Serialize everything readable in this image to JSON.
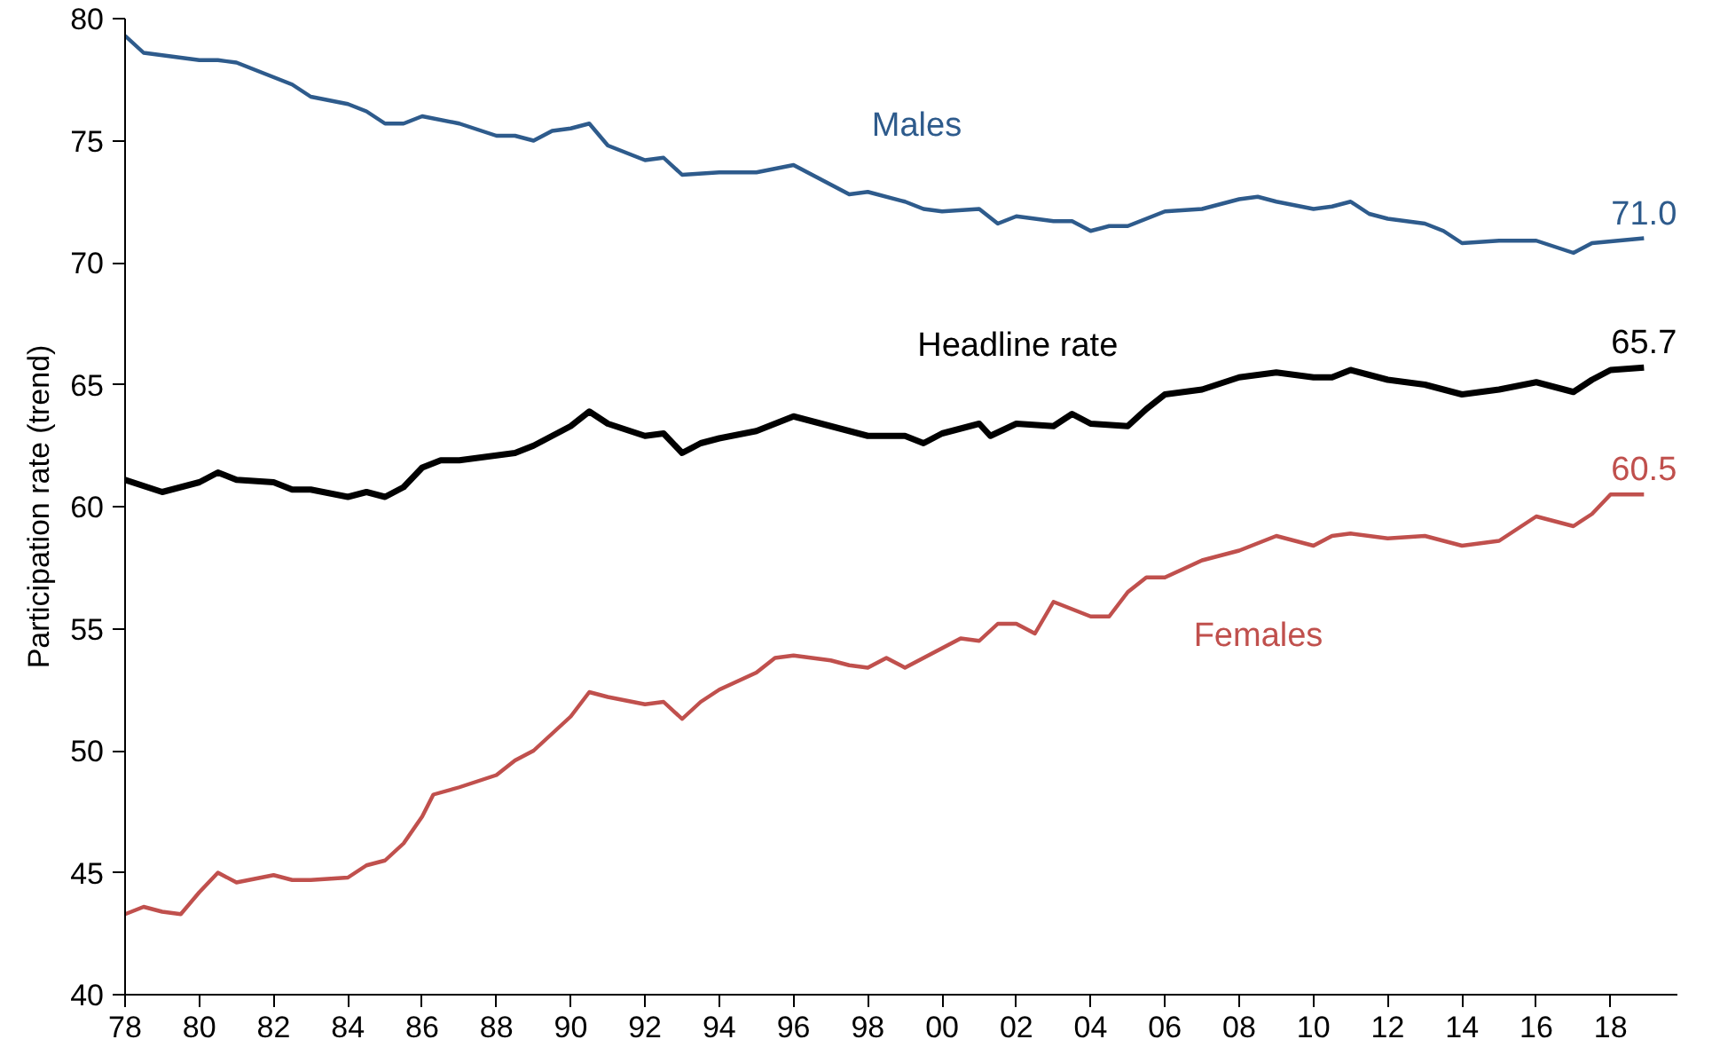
{
  "chart_data": {
    "type": "line",
    "ylabel": "Participation rate (trend)",
    "xlim": [
      1978,
      2019.8
    ],
    "ylim": [
      40,
      80
    ],
    "yticks": [
      40,
      45,
      50,
      55,
      60,
      65,
      70,
      75,
      80
    ],
    "xticks": [
      {
        "value": 1978,
        "label": "78"
      },
      {
        "value": 1980,
        "label": "80"
      },
      {
        "value": 1982,
        "label": "82"
      },
      {
        "value": 1984,
        "label": "84"
      },
      {
        "value": 1986,
        "label": "86"
      },
      {
        "value": 1988,
        "label": "88"
      },
      {
        "value": 1990,
        "label": "90"
      },
      {
        "value": 1992,
        "label": "92"
      },
      {
        "value": 1994,
        "label": "94"
      },
      {
        "value": 1996,
        "label": "96"
      },
      {
        "value": 1998,
        "label": "98"
      },
      {
        "value": 2000,
        "label": "00"
      },
      {
        "value": 2002,
        "label": "02"
      },
      {
        "value": 2004,
        "label": "04"
      },
      {
        "value": 2006,
        "label": "06"
      },
      {
        "value": 2008,
        "label": "08"
      },
      {
        "value": 2010,
        "label": "10"
      },
      {
        "value": 2012,
        "label": "12"
      },
      {
        "value": 2014,
        "label": "14"
      },
      {
        "value": 2016,
        "label": "16"
      },
      {
        "value": 2018,
        "label": "18"
      }
    ],
    "grid": false,
    "line_style": "solid",
    "marker": "none",
    "series": [
      {
        "name": "Males",
        "color": "#2e5b8c",
        "x": [
          1978,
          1978.5,
          1979,
          1980,
          1980.5,
          1981,
          1982,
          1982.5,
          1983,
          1984,
          1984.5,
          1985,
          1985.5,
          1986,
          1987,
          1988,
          1988.5,
          1989,
          1989.5,
          1990,
          1990.5,
          1991,
          1992,
          1992.5,
          1993,
          1994,
          1995,
          1996,
          1996.5,
          1997,
          1997.5,
          1998,
          1999,
          1999.5,
          2000,
          2001,
          2001.5,
          2002,
          2003,
          2003.5,
          2004,
          2004.5,
          2005,
          2006,
          2007,
          2008,
          2008.5,
          2009,
          2010,
          2010.5,
          2011,
          2011.5,
          2012,
          2013,
          2013.5,
          2014,
          2015,
          2016,
          2017,
          2017.5,
          2018.9
        ],
        "values": [
          79.3,
          78.6,
          78.5,
          78.3,
          78.3,
          78.2,
          77.6,
          77.3,
          76.8,
          76.5,
          76.2,
          75.7,
          75.7,
          76.0,
          75.7,
          75.2,
          75.2,
          75.0,
          75.4,
          75.5,
          75.7,
          74.8,
          74.2,
          74.3,
          73.6,
          73.7,
          73.7,
          74.0,
          73.6,
          73.2,
          72.8,
          72.9,
          72.5,
          72.2,
          72.1,
          72.2,
          71.6,
          71.9,
          71.7,
          71.7,
          71.3,
          71.5,
          71.5,
          72.1,
          72.2,
          72.6,
          72.7,
          72.5,
          72.2,
          72.3,
          72.5,
          72.0,
          71.8,
          71.6,
          71.3,
          70.8,
          70.9,
          70.9,
          70.4,
          70.8,
          71.0
        ],
        "value_labels": [
          null,
          null,
          null,
          null,
          null,
          null,
          null,
          null,
          null,
          null,
          null,
          null,
          null,
          null,
          null,
          null,
          null,
          null,
          null,
          null,
          null,
          null,
          null,
          null,
          null,
          null,
          null,
          null,
          null,
          null,
          null,
          null,
          null,
          null,
          null,
          null,
          null,
          null,
          null,
          null,
          null,
          null,
          null,
          null,
          null,
          null,
          null,
          null,
          null,
          null,
          null,
          null,
          null,
          null,
          null,
          null,
          null,
          null,
          null,
          null,
          "71.0"
        ]
      },
      {
        "name": "Headline rate",
        "color": "#000000",
        "x": [
          1978,
          1979,
          1980,
          1980.5,
          1981,
          1982,
          1982.5,
          1983,
          1984,
          1984.5,
          1985,
          1985.5,
          1986,
          1986.5,
          1987,
          1988,
          1988.5,
          1989,
          1990,
          1990.5,
          1991,
          1992,
          1992.5,
          1993,
          1993.5,
          1994,
          1995,
          1996,
          1997,
          1998,
          1999,
          1999.5,
          2000,
          2001,
          2001.3,
          2002,
          2003,
          2003.5,
          2004,
          2005,
          2005.5,
          2006,
          2007,
          2008,
          2009,
          2010,
          2010.5,
          2011,
          2011.5,
          2012,
          2013,
          2014,
          2015,
          2016,
          2017,
          2017.5,
          2018,
          2018.9
        ],
        "values": [
          61.1,
          60.6,
          61.0,
          61.4,
          61.1,
          61.0,
          60.7,
          60.7,
          60.4,
          60.6,
          60.4,
          60.8,
          61.6,
          61.9,
          61.9,
          62.1,
          62.2,
          62.5,
          63.3,
          63.9,
          63.4,
          62.9,
          63.0,
          62.2,
          62.6,
          62.8,
          63.1,
          63.7,
          63.3,
          62.9,
          62.9,
          62.6,
          63.0,
          63.4,
          62.9,
          63.4,
          63.3,
          63.8,
          63.4,
          63.3,
          64.0,
          64.6,
          64.8,
          65.3,
          65.5,
          65.3,
          65.3,
          65.6,
          65.4,
          65.2,
          65.0,
          64.6,
          64.8,
          65.1,
          64.7,
          65.2,
          65.6,
          65.7
        ],
        "value_labels": [
          null,
          null,
          null,
          null,
          null,
          null,
          null,
          null,
          null,
          null,
          null,
          null,
          null,
          null,
          null,
          null,
          null,
          null,
          null,
          null,
          null,
          null,
          null,
          null,
          null,
          null,
          null,
          null,
          null,
          null,
          null,
          null,
          null,
          null,
          null,
          null,
          null,
          null,
          null,
          null,
          null,
          null,
          null,
          null,
          null,
          null,
          null,
          null,
          null,
          null,
          null,
          null,
          null,
          null,
          null,
          null,
          null,
          "65.7"
        ]
      },
      {
        "name": "Females",
        "color": "#c0504d",
        "x": [
          1978,
          1978.5,
          1979,
          1979.5,
          1980,
          1980.5,
          1981,
          1982,
          1982.5,
          1983,
          1984,
          1984.5,
          1985,
          1985.5,
          1986,
          1986.3,
          1987,
          1988,
          1988.5,
          1989,
          1990,
          1990.5,
          1991,
          1992,
          1992.5,
          1993,
          1993.5,
          1994,
          1995,
          1995.5,
          1996,
          1997,
          1997.5,
          1998,
          1998.5,
          1999,
          2000,
          2000.5,
          2001,
          2001.5,
          2002,
          2002.5,
          2003,
          2004,
          2004.5,
          2005,
          2005.5,
          2006,
          2007,
          2008,
          2008.5,
          2009,
          2010,
          2010.5,
          2011,
          2012,
          2013,
          2014,
          2015,
          2016,
          2017,
          2017.5,
          2018,
          2018.9
        ],
        "values": [
          43.3,
          43.6,
          43.4,
          43.3,
          44.2,
          45.0,
          44.6,
          44.9,
          44.7,
          44.7,
          44.8,
          45.3,
          45.5,
          46.2,
          47.3,
          48.2,
          48.5,
          49.0,
          49.6,
          50.0,
          51.4,
          52.4,
          52.2,
          51.9,
          52.0,
          51.3,
          52.0,
          52.5,
          53.2,
          53.8,
          53.9,
          53.7,
          53.5,
          53.4,
          53.8,
          53.4,
          54.2,
          54.6,
          54.5,
          55.2,
          55.2,
          54.8,
          56.1,
          55.5,
          55.5,
          56.5,
          57.1,
          57.1,
          57.8,
          58.2,
          58.5,
          58.8,
          58.4,
          58.8,
          58.9,
          58.7,
          58.8,
          58.4,
          58.6,
          59.6,
          59.2,
          59.7,
          60.5,
          60.5
        ],
        "value_labels": [
          null,
          null,
          null,
          null,
          null,
          null,
          null,
          null,
          null,
          null,
          null,
          null,
          null,
          null,
          null,
          null,
          null,
          null,
          null,
          null,
          null,
          null,
          null,
          null,
          null,
          null,
          null,
          null,
          null,
          null,
          null,
          null,
          null,
          null,
          null,
          null,
          null,
          null,
          null,
          null,
          null,
          null,
          null,
          null,
          null,
          null,
          null,
          null,
          null,
          null,
          null,
          null,
          null,
          null,
          null,
          null,
          null,
          null,
          null,
          null,
          null,
          null,
          null,
          "60.5"
        ]
      }
    ]
  }
}
